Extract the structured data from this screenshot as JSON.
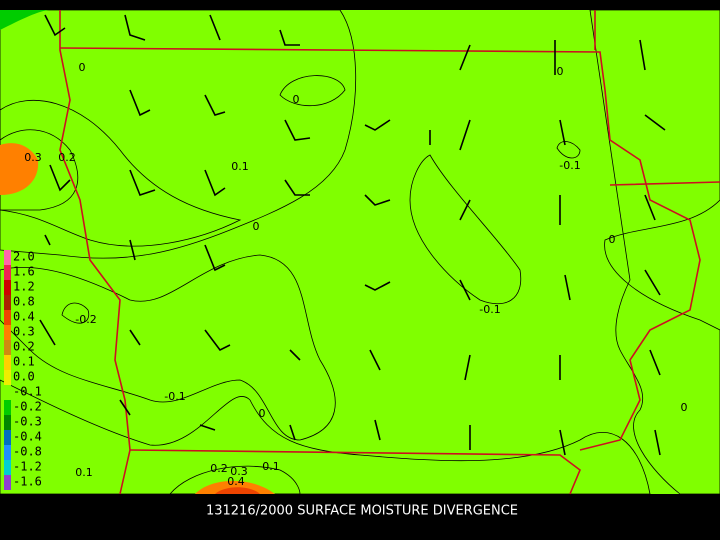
{
  "caption": "131216/2000 SURFACE MOISTURE DIVERGENCE",
  "legend": [
    {
      "label": "2.0",
      "color": "#ff66aa"
    },
    {
      "label": "1.6",
      "color": "#ee2255"
    },
    {
      "label": "1.2",
      "color": "#cc0000"
    },
    {
      "label": "0.8",
      "color": "#aa2200"
    },
    {
      "label": "0.4",
      "color": "#ee4400"
    },
    {
      "label": "0.3",
      "color": "#ff8000"
    },
    {
      "label": "0.2",
      "color": "#d08a10"
    },
    {
      "label": "0.1",
      "color": "#ffd000"
    },
    {
      "label": "0.0",
      "color": "#eeee00"
    },
    {
      "label": "-0.1",
      "color": "#80ff00"
    },
    {
      "label": "-0.2",
      "color": "#00cc00"
    },
    {
      "label": "-0.3",
      "color": "#008800"
    },
    {
      "label": "-0.4",
      "color": "#0070c0"
    },
    {
      "label": "-0.8",
      "color": "#2090ff"
    },
    {
      "label": "-1.2",
      "color": "#00d0d0"
    },
    {
      "label": "-1.6",
      "color": "#9040d0"
    }
  ],
  "contour_labels": [
    "0",
    "0",
    "0.3",
    "0.2",
    "0.1",
    "0",
    "-0.1",
    "0",
    "-0.2",
    "-0.1",
    "-0.1",
    "0",
    "0",
    "0.1",
    "0.2",
    "0.3",
    "0.1",
    "0.4",
    "0"
  ]
}
